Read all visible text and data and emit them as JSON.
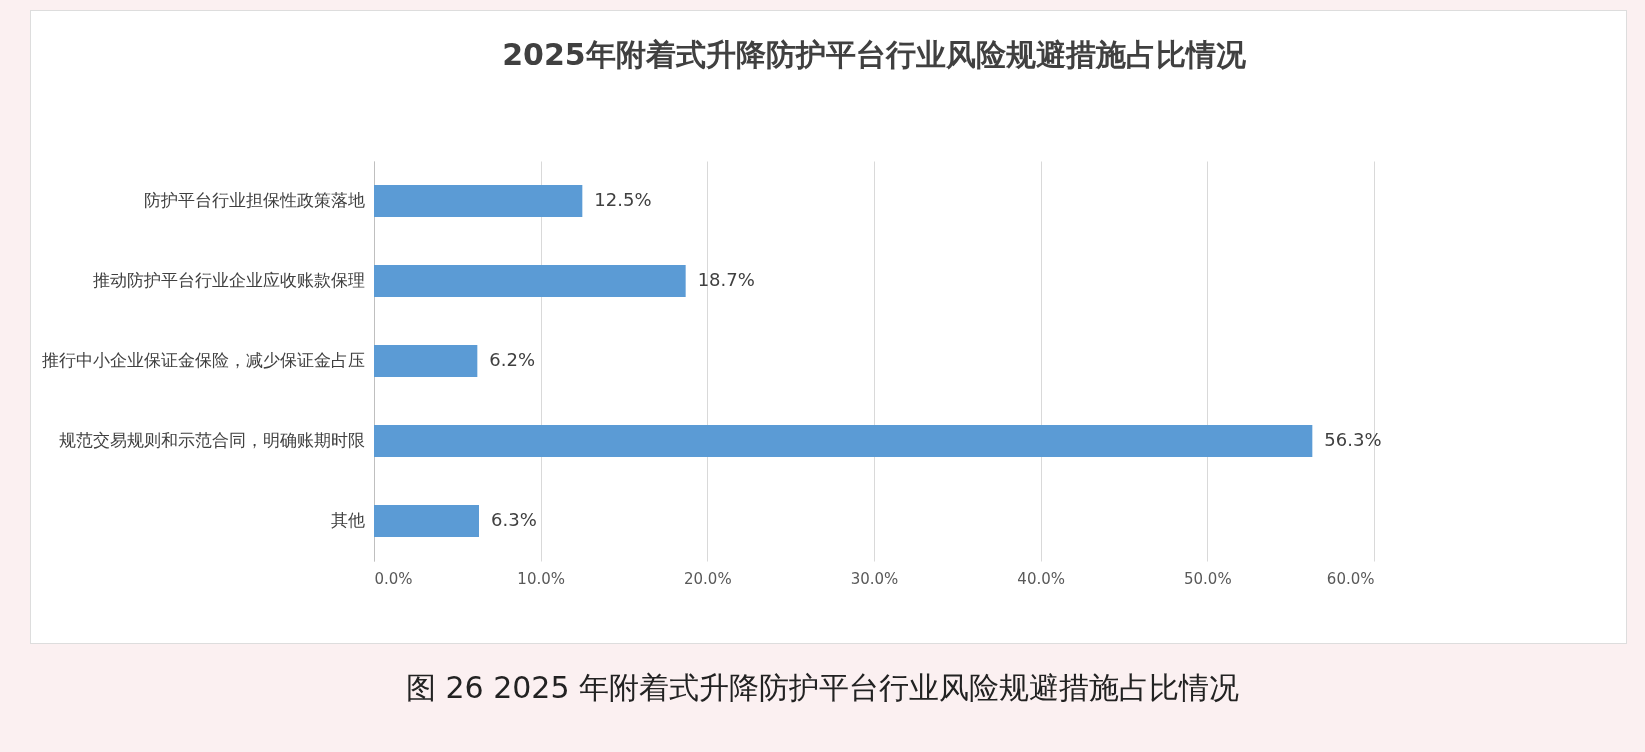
{
  "chart_data": {
    "type": "bar",
    "orientation": "horizontal",
    "title": "2025年附着式升降防护平台行业风险规避措施占比情况",
    "categories": [
      "防护平台行业担保性政策落地",
      "推动防护平台行业企业应收账款保理",
      "推行中小企业保证金保险，减少保证金占压",
      "规范交易规则和示范合同，明确账期时限",
      "其他"
    ],
    "values": [
      12.5,
      18.7,
      6.2,
      56.3,
      6.3
    ],
    "value_labels": [
      "12.5%",
      "18.7%",
      "6.2%",
      "56.3%",
      "6.3%"
    ],
    "color": "#5b9bd5",
    "xlim": [
      0,
      60
    ],
    "xticks": [
      {
        "value": 0,
        "label": "0.0%"
      },
      {
        "value": 10,
        "label": "10.0%"
      },
      {
        "value": 20,
        "label": "20.0%"
      },
      {
        "value": 30,
        "label": "30.0%"
      },
      {
        "value": 40,
        "label": "40.0%"
      },
      {
        "value": 50,
        "label": "50.0%"
      },
      {
        "value": 60,
        "label": "60.0%"
      }
    ],
    "grid": "x",
    "annotations": [
      "图 26 2025 年附着式升降防护平台行业风险规避措施占比情况"
    ]
  }
}
